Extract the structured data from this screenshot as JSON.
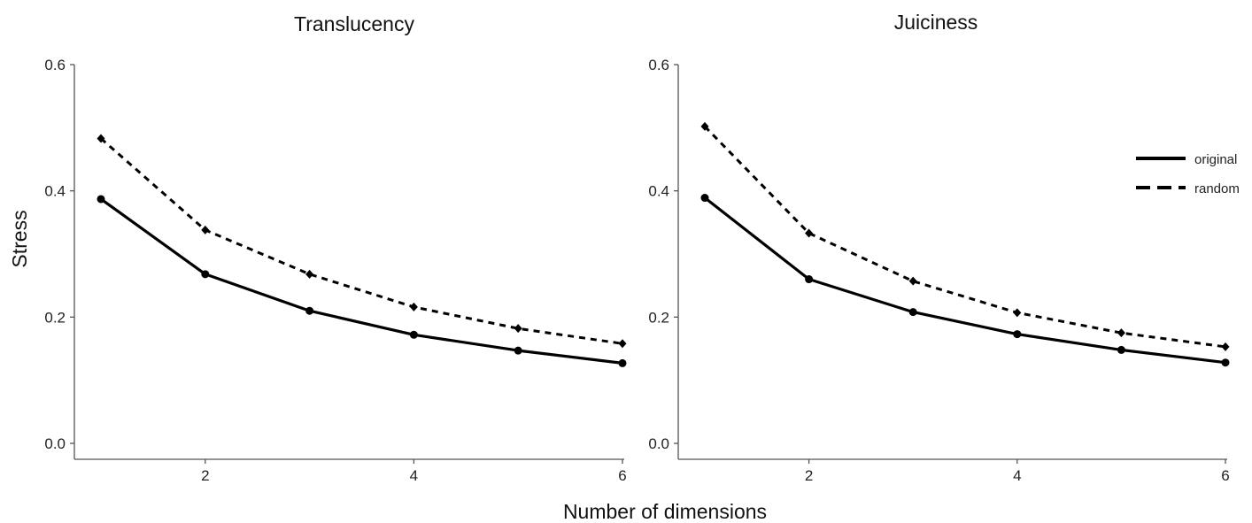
{
  "chart_data": {
    "type": "line",
    "shared_xlabel": "Number of dimensions",
    "shared_ylabel": "Stress",
    "legend": {
      "placement": "top-right",
      "entries": [
        {
          "name": "original",
          "style": "solid"
        },
        {
          "name": "random",
          "style": "dashed"
        }
      ]
    },
    "x_ticks": [
      2,
      4,
      6
    ],
    "y_ticks": [
      "0.0",
      "0.2",
      "0.4",
      "0.6"
    ],
    "xlim": [
      1,
      6
    ],
    "ylim": [
      0,
      0.6
    ],
    "grid": false,
    "panels": [
      {
        "title": "Translucency",
        "x": [
          1,
          2,
          3,
          4,
          5,
          6
        ],
        "series": [
          {
            "name": "original",
            "style": "solid",
            "values": [
              0.387,
              0.268,
              0.21,
              0.172,
              0.147,
              0.127
            ]
          },
          {
            "name": "random",
            "style": "dashed",
            "values": [
              0.483,
              0.338,
              0.268,
              0.216,
              0.182,
              0.158
            ]
          }
        ]
      },
      {
        "title": "Juiciness",
        "x": [
          1,
          2,
          3,
          4,
          5,
          6
        ],
        "series": [
          {
            "name": "original",
            "style": "solid",
            "values": [
              0.389,
              0.26,
              0.208,
              0.173,
              0.148,
              0.128
            ]
          },
          {
            "name": "random",
            "style": "dashed",
            "values": [
              0.502,
              0.333,
              0.257,
              0.207,
              0.175,
              0.153
            ]
          }
        ]
      }
    ]
  }
}
